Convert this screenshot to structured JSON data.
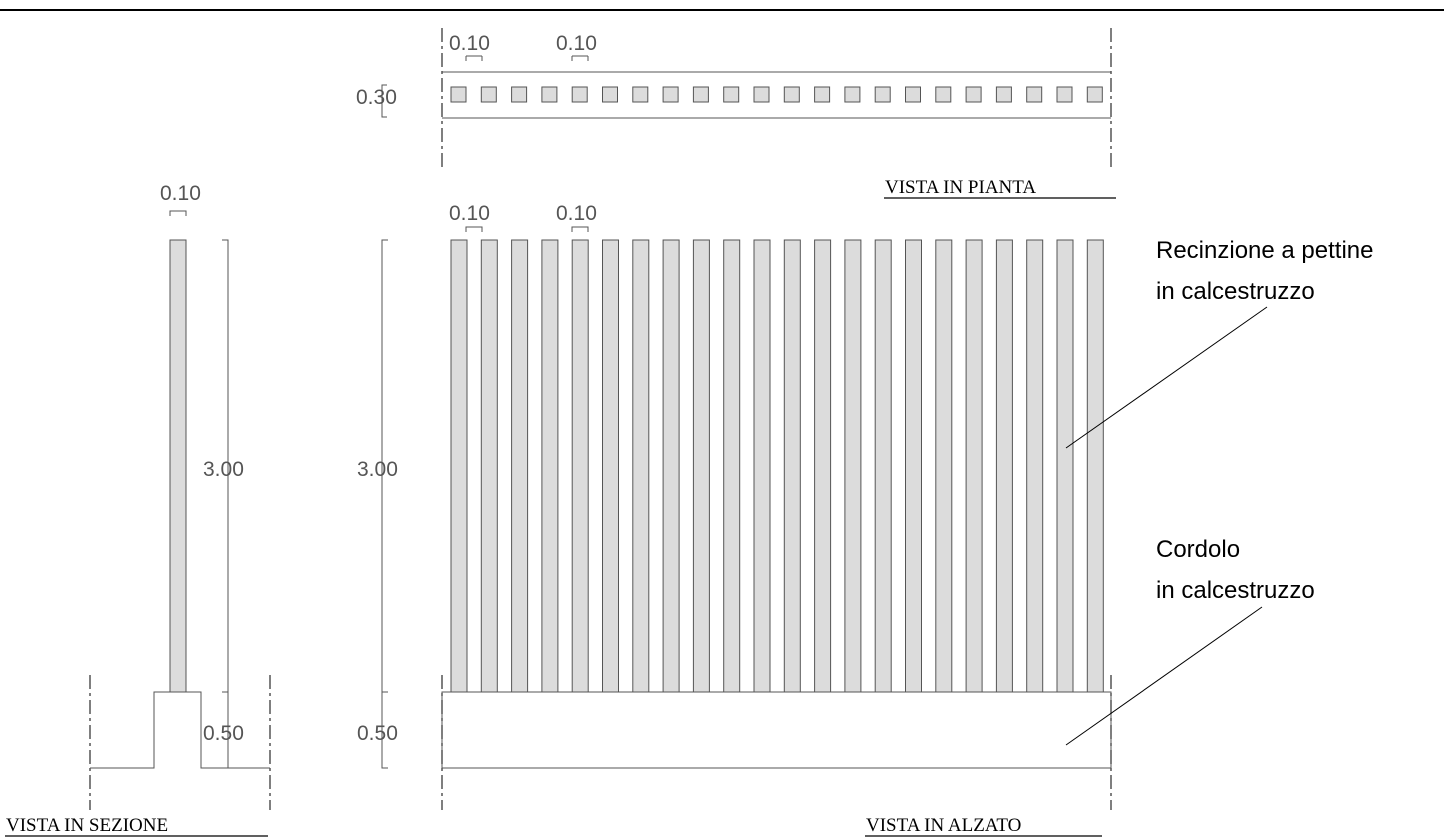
{
  "views": {
    "plan": {
      "title": "VISTA IN PIANTA",
      "dim_width_1": "0.10",
      "dim_width_2": "0.10",
      "dim_depth": "0.30",
      "post_count": 22
    },
    "elevation": {
      "title": "VISTA IN ALZATO",
      "dim_width_1": "0.10",
      "dim_width_2": "0.10",
      "dim_height": "3.00",
      "dim_base": "0.50",
      "post_count": 22
    },
    "section": {
      "title": "VISTA IN SEZIONE",
      "dim_width": "0.10",
      "dim_height": "3.00",
      "dim_base": "0.50"
    }
  },
  "labels": {
    "fence_line1": "Recinzione a pettine",
    "fence_line2": "in calcestruzzo",
    "curb_line1": "Cordolo",
    "curb_line2": "in calcestruzzo"
  },
  "colors": {
    "post_fill": "#dcdcdc",
    "line": "#555555",
    "text": "#000000"
  }
}
